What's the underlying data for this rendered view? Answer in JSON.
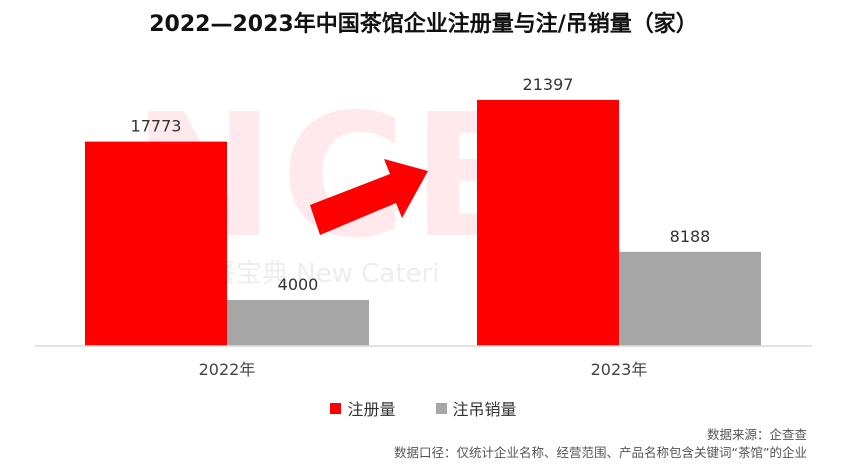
{
  "watermark": {
    "logo_text": "NCB",
    "text": "餐宝典 New Cateri"
  },
  "chart_data": {
    "type": "bar",
    "title": "2022—2023年中国茶馆企业注册量与注/吊销量（家）",
    "categories": [
      "2022年",
      "2023年"
    ],
    "series": [
      {
        "name": "注册量",
        "values": [
          17773,
          21397
        ],
        "color": "#ff0000"
      },
      {
        "name": "注吊销量",
        "values": [
          4000,
          8188
        ],
        "color": "#a6a6a6"
      }
    ],
    "ylim": [
      0,
      24000
    ],
    "grid": false,
    "legend": "bottom",
    "annotation": "red-arrow-up-right"
  },
  "footnotes": {
    "source": "数据来源：企查查",
    "scope": "数据口径：仅统计企业名称、经营范围、产品名称包含关键词“茶馆”的企业"
  }
}
